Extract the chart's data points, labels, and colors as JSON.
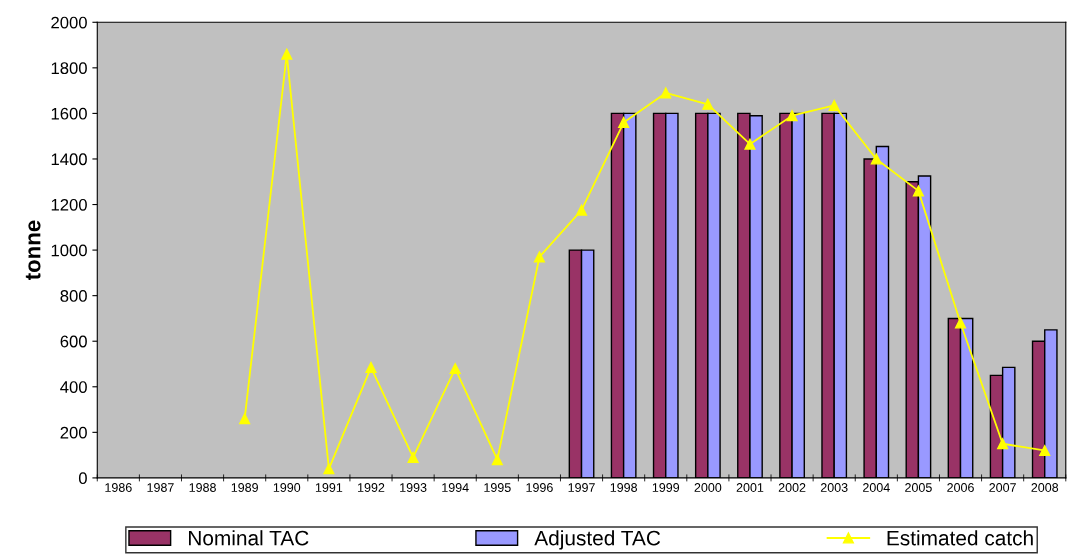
{
  "chart_data": {
    "type": "bar",
    "ylabel": "tonne",
    "categories": [
      "1986",
      "1987",
      "1988",
      "1989",
      "1990",
      "1991",
      "1992",
      "1993",
      "1994",
      "1995",
      "1996",
      "1997",
      "1998",
      "1999",
      "2000",
      "2001",
      "2002",
      "2003",
      "2004",
      "2005",
      "2006",
      "2007",
      "2008"
    ],
    "series": [
      {
        "name": "Nominal TAC",
        "color": "#993366",
        "values": [
          null,
          null,
          null,
          null,
          null,
          null,
          null,
          null,
          null,
          null,
          null,
          1000,
          1600,
          1600,
          1600,
          1600,
          1600,
          1600,
          1400,
          1300,
          700,
          450,
          600
        ]
      },
      {
        "name": "Adjusted TAC",
        "color": "#9999ff",
        "values": [
          null,
          null,
          null,
          null,
          null,
          null,
          null,
          null,
          null,
          null,
          null,
          1000,
          1600,
          1600,
          1600,
          1590,
          1600,
          1600,
          1455,
          1325,
          700,
          485,
          650
        ]
      },
      {
        "name": "Estimated catch",
        "type": "line",
        "color": "#ffff00",
        "marker": "triangle",
        "values": [
          null,
          null,
          null,
          260,
          1860,
          40,
          485,
          90,
          480,
          80,
          970,
          1175,
          1560,
          1690,
          1640,
          1465,
          1590,
          1635,
          1400,
          1260,
          680,
          150,
          120
        ]
      }
    ],
    "ylim": [
      0,
      2000
    ],
    "yticks": [
      0,
      200,
      400,
      600,
      800,
      1000,
      1200,
      1400,
      1600,
      1800,
      2000
    ],
    "grid": false,
    "legend": "bottom"
  }
}
